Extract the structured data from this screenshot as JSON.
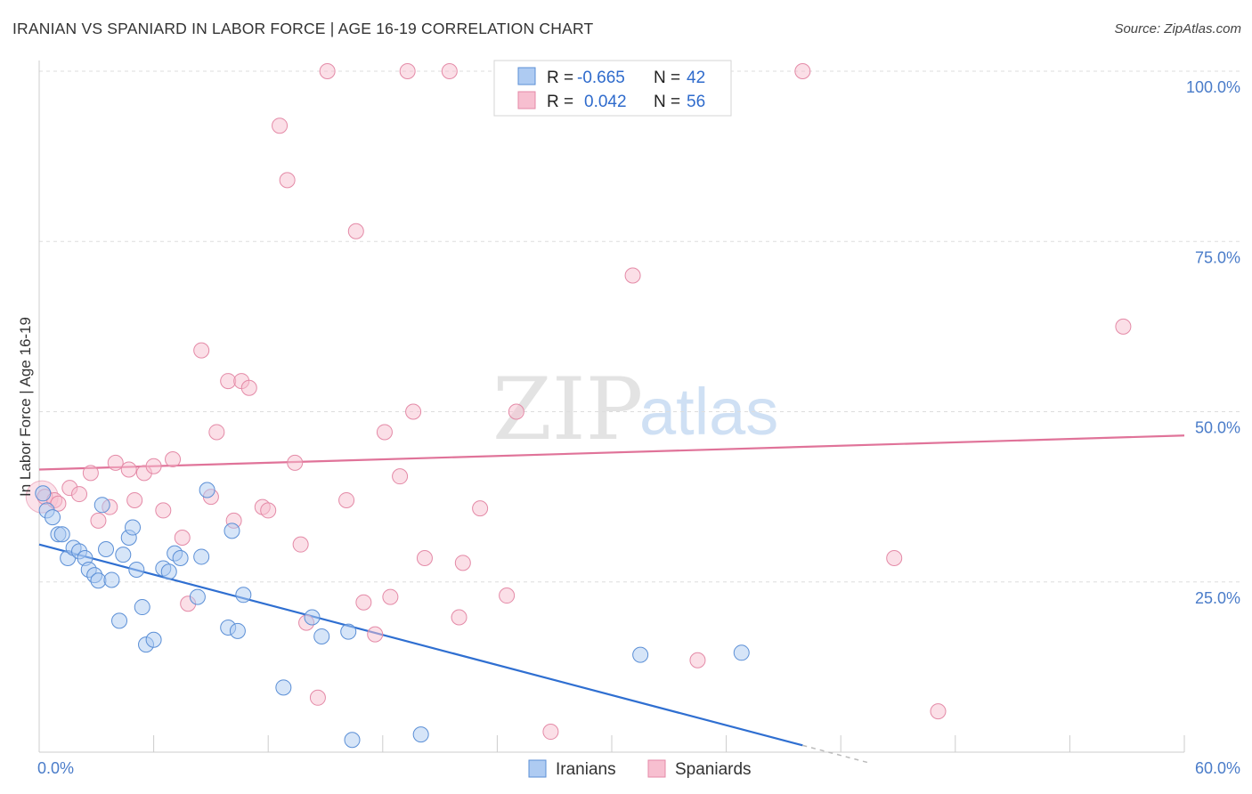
{
  "header": {
    "title": "IRANIAN VS SPANIARD IN LABOR FORCE | AGE 16-19 CORRELATION CHART",
    "source": "Source: ZipAtlas.com"
  },
  "watermark": {
    "zip": "ZIP",
    "atlas": "atlas"
  },
  "legend": {
    "iranians": {
      "r_label": "R =",
      "r_value": "-0.665",
      "n_label": "N =",
      "n_value": "42"
    },
    "spaniards": {
      "r_label": "R =",
      "r_value": "0.042",
      "n_label": "N =",
      "n_value": "56"
    }
  },
  "bottom_legend": {
    "iranians": "Iranians",
    "spaniards": "Spaniards"
  },
  "colors": {
    "iranian_fill": "#aecbf2",
    "iranian_stroke": "#5b8fd6",
    "iranian_line": "#2f6fd1",
    "spaniard_fill": "#f7bfd0",
    "spaniard_stroke": "#e48aa7",
    "spaniard_line": "#e07399",
    "tick_text": "#4a7cc9",
    "grid": "#dddddd"
  },
  "chart_data": {
    "type": "scatter",
    "title": "IRANIAN VS SPANIARD IN LABOR FORCE | AGE 16-19 CORRELATION CHART",
    "xlabel": "",
    "ylabel": "In Labor Force | Age 16-19",
    "xlim": [
      0,
      60
    ],
    "ylim": [
      0,
      100
    ],
    "x_tick_labels": [
      {
        "value": 0,
        "label": "0.0%"
      },
      {
        "value": 60,
        "label": "60.0%"
      }
    ],
    "y_tick_labels": [
      {
        "value": 25,
        "label": "25.0%"
      },
      {
        "value": 50,
        "label": "50.0%"
      },
      {
        "value": 75,
        "label": "75.0%"
      },
      {
        "value": 100,
        "label": "100.0%"
      }
    ],
    "grid": true,
    "legend_position": "top-center",
    "series": [
      {
        "name": "Iranians",
        "r": -0.665,
        "n": 42,
        "trend": {
          "x": [
            0,
            40
          ],
          "y": [
            30.5,
            1.0
          ]
        },
        "points": [
          [
            0.2,
            38.0
          ],
          [
            0.4,
            35.5
          ],
          [
            0.7,
            34.5
          ],
          [
            1.0,
            32.0
          ],
          [
            1.2,
            32.0
          ],
          [
            1.5,
            28.5
          ],
          [
            1.8,
            30.0
          ],
          [
            2.1,
            29.5
          ],
          [
            2.4,
            28.5
          ],
          [
            2.6,
            26.8
          ],
          [
            2.9,
            26.0
          ],
          [
            3.1,
            25.2
          ],
          [
            3.3,
            36.3
          ],
          [
            3.5,
            29.8
          ],
          [
            3.8,
            25.3
          ],
          [
            4.2,
            19.3
          ],
          [
            4.4,
            29.0
          ],
          [
            4.7,
            31.5
          ],
          [
            4.9,
            33.0
          ],
          [
            5.1,
            26.8
          ],
          [
            5.4,
            21.3
          ],
          [
            5.6,
            15.8
          ],
          [
            6.0,
            16.5
          ],
          [
            6.5,
            27.0
          ],
          [
            6.8,
            26.5
          ],
          [
            7.1,
            29.2
          ],
          [
            7.4,
            28.5
          ],
          [
            8.3,
            22.8
          ],
          [
            8.5,
            28.7
          ],
          [
            8.8,
            38.5
          ],
          [
            9.9,
            18.3
          ],
          [
            10.1,
            32.5
          ],
          [
            10.4,
            17.8
          ],
          [
            10.7,
            23.1
          ],
          [
            12.8,
            9.5
          ],
          [
            14.3,
            19.8
          ],
          [
            14.8,
            17.0
          ],
          [
            16.2,
            17.7
          ],
          [
            16.4,
            1.8
          ],
          [
            20.0,
            2.6
          ],
          [
            31.5,
            14.3
          ],
          [
            36.8,
            14.6
          ]
        ]
      },
      {
        "name": "Spaniards",
        "r": 0.042,
        "n": 56,
        "trend": {
          "x": [
            0,
            60
          ],
          "y": [
            41.5,
            46.5
          ]
        },
        "points": [
          [
            0.3,
            37.5
          ],
          [
            0.8,
            37.0
          ],
          [
            1.0,
            36.5
          ],
          [
            1.6,
            38.8
          ],
          [
            2.1,
            37.9
          ],
          [
            2.7,
            41.0
          ],
          [
            3.1,
            34.0
          ],
          [
            3.7,
            36.0
          ],
          [
            4.0,
            42.5
          ],
          [
            4.7,
            41.5
          ],
          [
            5.0,
            37.0
          ],
          [
            5.5,
            41.0
          ],
          [
            6.0,
            42.0
          ],
          [
            6.5,
            35.5
          ],
          [
            7.0,
            43.0
          ],
          [
            7.5,
            31.5
          ],
          [
            7.8,
            21.8
          ],
          [
            8.5,
            59.0
          ],
          [
            9.0,
            37.5
          ],
          [
            9.3,
            47.0
          ],
          [
            9.9,
            54.5
          ],
          [
            10.2,
            34.0
          ],
          [
            10.6,
            54.5
          ],
          [
            11.0,
            53.5
          ],
          [
            11.7,
            36.0
          ],
          [
            12.0,
            35.5
          ],
          [
            12.6,
            92.0
          ],
          [
            13.0,
            84.0
          ],
          [
            13.4,
            42.5
          ],
          [
            13.7,
            30.5
          ],
          [
            14.0,
            19.0
          ],
          [
            14.6,
            8.0
          ],
          [
            15.1,
            100.0
          ],
          [
            16.1,
            37.0
          ],
          [
            16.6,
            76.5
          ],
          [
            17.0,
            22.0
          ],
          [
            17.6,
            17.3
          ],
          [
            18.1,
            47.0
          ],
          [
            18.4,
            22.8
          ],
          [
            18.9,
            40.5
          ],
          [
            19.3,
            100.0
          ],
          [
            19.6,
            50.0
          ],
          [
            20.2,
            28.5
          ],
          [
            21.5,
            100.0
          ],
          [
            22.0,
            19.8
          ],
          [
            22.2,
            27.8
          ],
          [
            23.1,
            35.8
          ],
          [
            24.5,
            23.0
          ],
          [
            25.0,
            50.0
          ],
          [
            26.8,
            3.0
          ],
          [
            31.1,
            70.0
          ],
          [
            34.5,
            13.5
          ],
          [
            40.0,
            100.0
          ],
          [
            44.8,
            28.5
          ],
          [
            47.1,
            6.0
          ],
          [
            56.8,
            62.5
          ]
        ]
      }
    ]
  }
}
